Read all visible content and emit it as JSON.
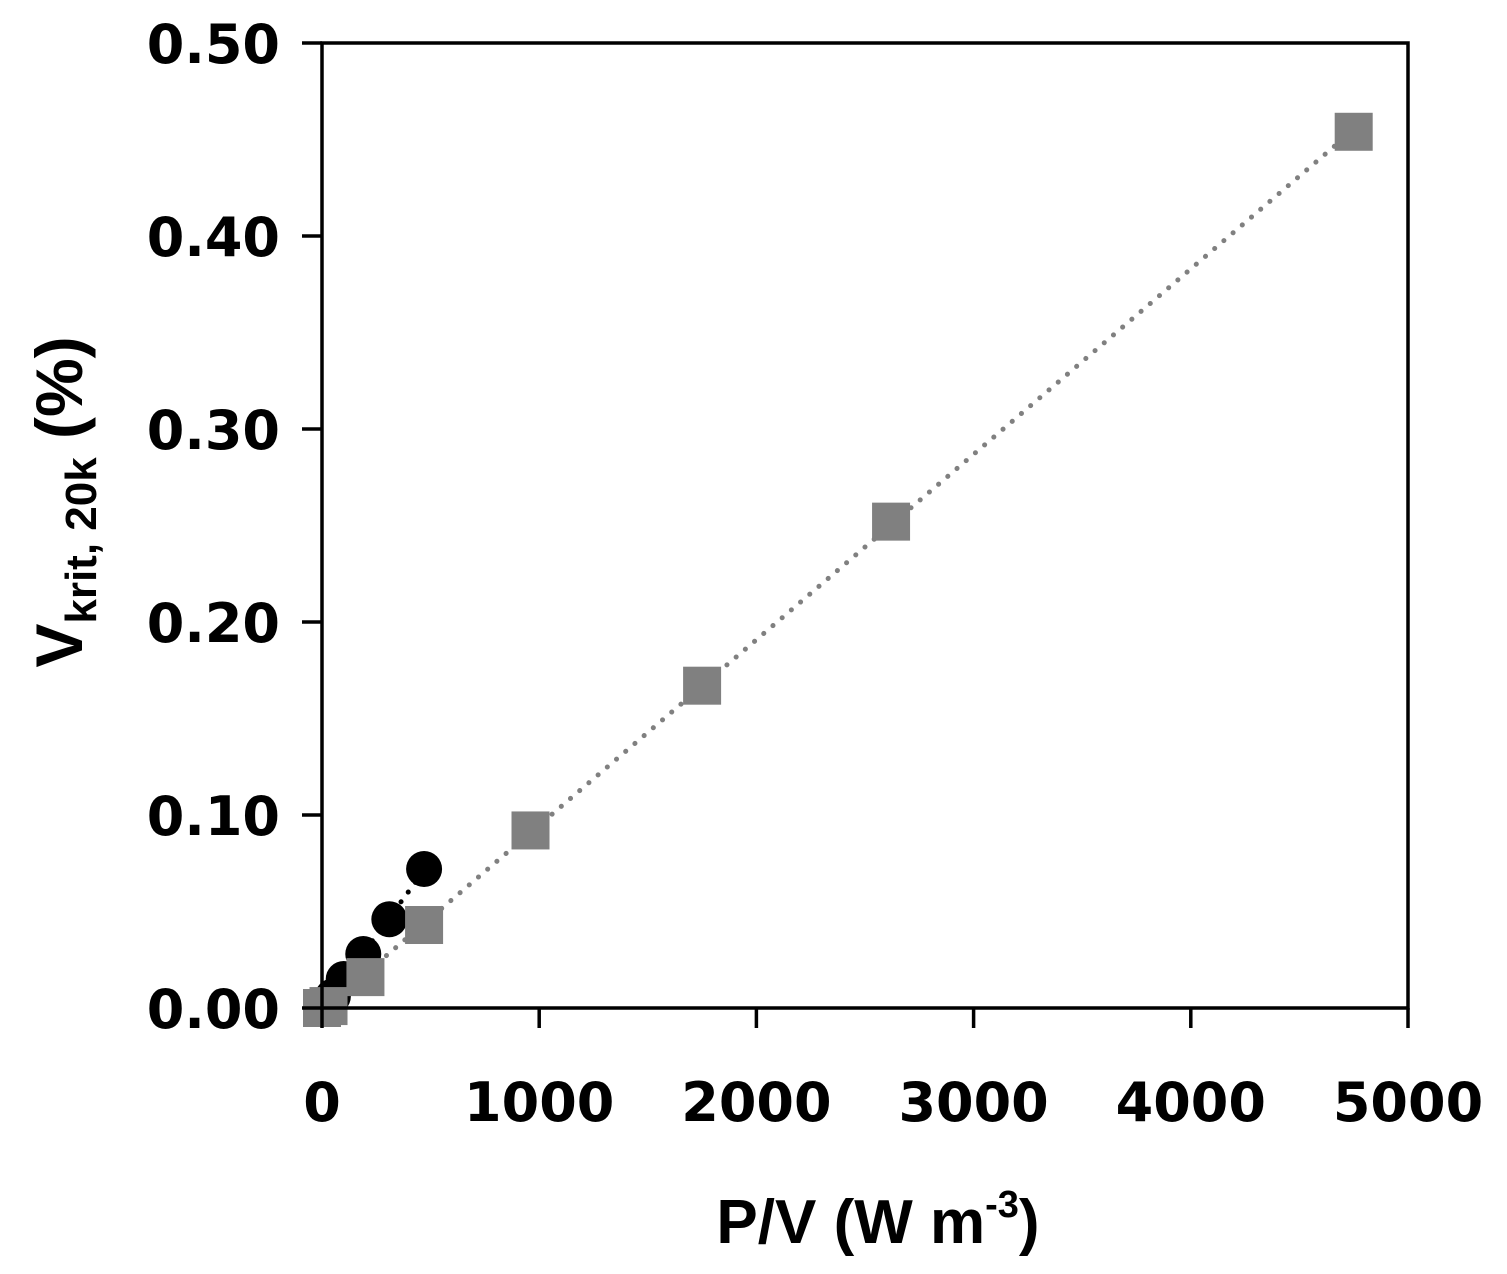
{
  "chart_data": {
    "type": "scatter",
    "title": "",
    "xlabel": {
      "main": "P/V (W m",
      "sup": "-3",
      "tail": ")"
    },
    "ylabel": {
      "main": "V",
      "sub": "krit, 20k",
      "tail": " (%)"
    },
    "xlim": [
      0,
      5000
    ],
    "ylim": [
      0,
      0.5
    ],
    "x_ticks": [
      0,
      1000,
      2000,
      3000,
      4000,
      5000
    ],
    "x_tick_labels": [
      "0",
      "1000",
      "2000",
      "3000",
      "4000",
      "5000"
    ],
    "y_ticks": [
      0,
      0.1,
      0.2,
      0.3,
      0.4,
      0.5
    ],
    "y_tick_labels": [
      "0.00",
      "0.10",
      "0.20",
      "0.30",
      "0.40",
      "0.50"
    ],
    "grid": false,
    "legend": "none",
    "series": [
      {
        "name": "circles",
        "marker": "circle",
        "color": "#000000",
        "trendline": "dotted",
        "x": [
          0,
          10,
          50,
          100,
          190,
          310,
          470
        ],
        "y": [
          0.0,
          0.002,
          0.006,
          0.015,
          0.028,
          0.046,
          0.072
        ]
      },
      {
        "name": "squares",
        "marker": "square",
        "color": "#808080",
        "trendline": "dotted",
        "x": [
          0,
          30,
          200,
          470,
          960,
          1750,
          2620,
          4750
        ],
        "y": [
          0.0,
          0.001,
          0.016,
          0.043,
          0.092,
          0.167,
          0.252,
          0.454
        ]
      }
    ]
  }
}
